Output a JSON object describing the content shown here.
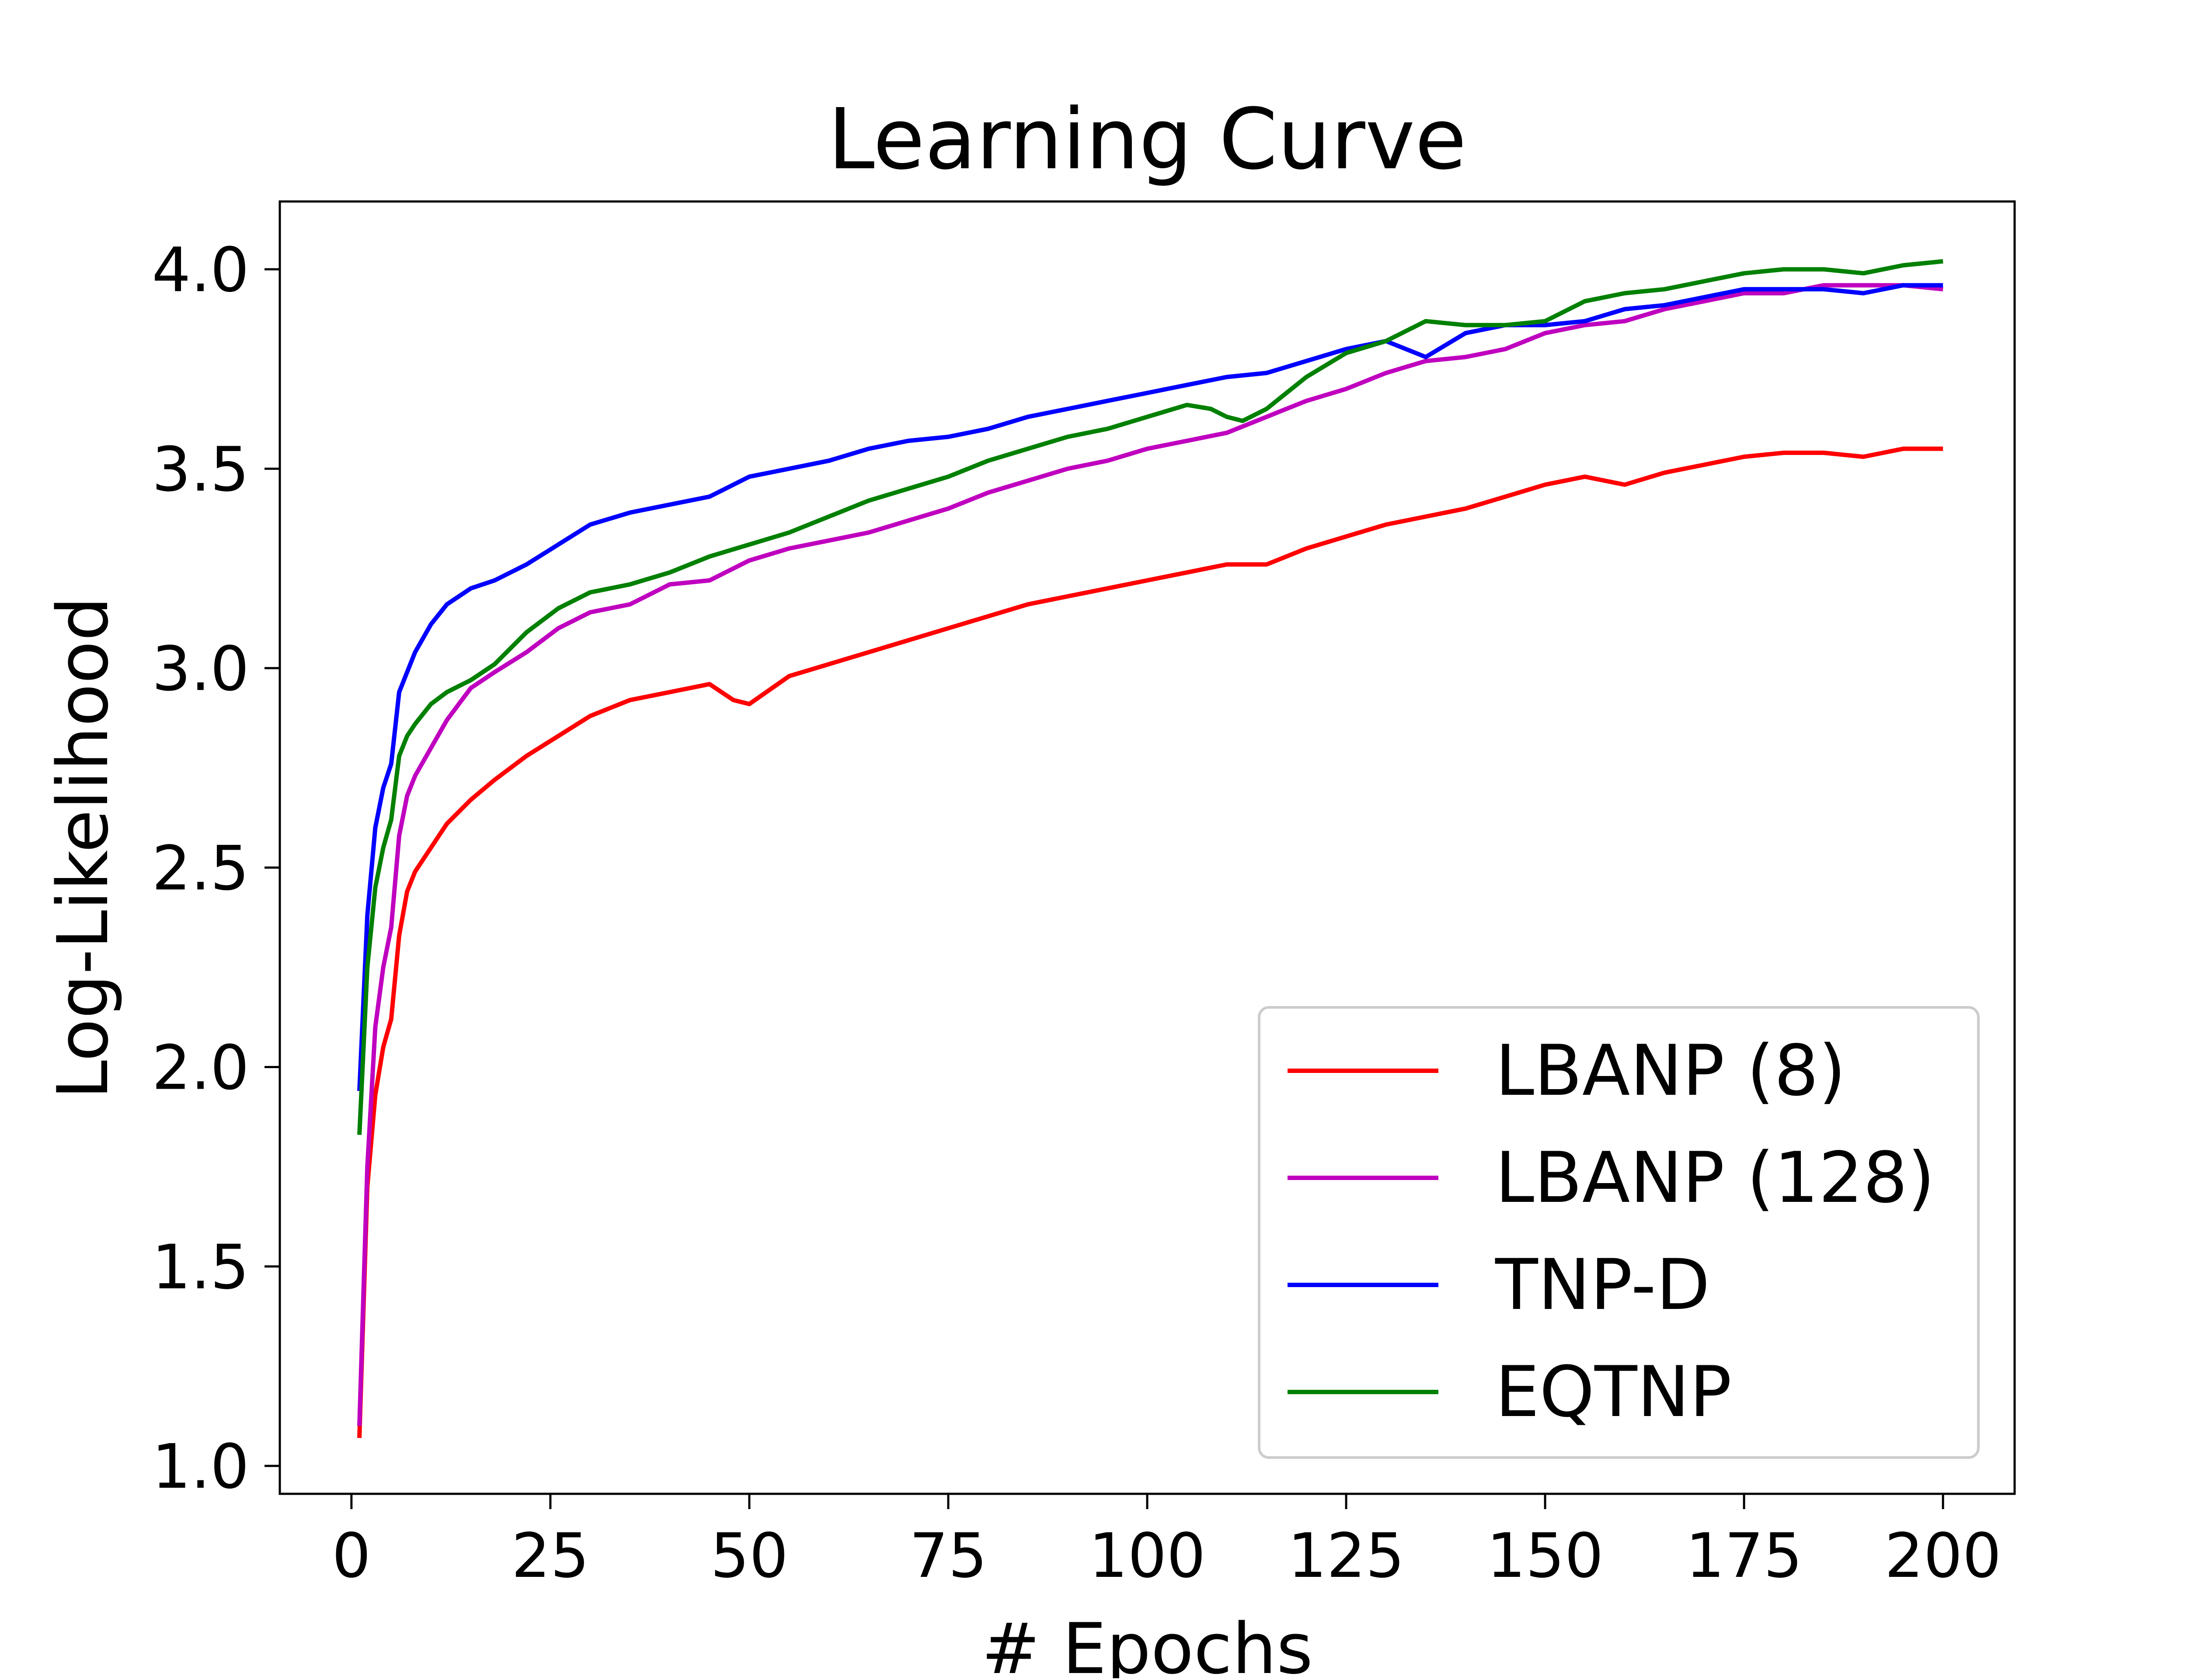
{
  "chart_data": {
    "type": "line",
    "title": "Learning Curve",
    "xlabel": "# Epochs",
    "ylabel": "Log-Likelihood",
    "xlim": [
      -9,
      209
    ],
    "ylim": [
      0.93,
      4.17
    ],
    "xticks": [
      0,
      25,
      50,
      75,
      100,
      125,
      150,
      175,
      200
    ],
    "xtick_labels": [
      "0",
      "25",
      "50",
      "75",
      "100",
      "125",
      "150",
      "175",
      "200"
    ],
    "yticks": [
      1.0,
      1.5,
      2.0,
      2.5,
      3.0,
      3.5,
      4.0
    ],
    "ytick_labels": [
      "1.0",
      "1.5",
      "2.0",
      "2.5",
      "3.0",
      "3.5",
      "4.0"
    ],
    "grid": false,
    "legend_position": "lower-right",
    "series": [
      {
        "name": "LBANP (8)",
        "color": "#ff0000",
        "x": [
          1,
          2,
          3,
          4,
          5,
          6,
          7,
          8,
          10,
          12,
          15,
          18,
          22,
          26,
          30,
          35,
          40,
          45,
          48,
          50,
          55,
          60,
          65,
          70,
          75,
          80,
          85,
          90,
          95,
          100,
          105,
          110,
          115,
          120,
          125,
          130,
          135,
          140,
          145,
          150,
          155,
          160,
          165,
          170,
          175,
          180,
          185,
          190,
          195,
          200
        ],
        "values": [
          1.07,
          1.7,
          1.93,
          2.05,
          2.12,
          2.33,
          2.44,
          2.49,
          2.55,
          2.61,
          2.67,
          2.72,
          2.78,
          2.83,
          2.88,
          2.92,
          2.94,
          2.96,
          2.92,
          2.91,
          2.98,
          3.01,
          3.04,
          3.07,
          3.1,
          3.13,
          3.16,
          3.18,
          3.2,
          3.22,
          3.24,
          3.26,
          3.26,
          3.3,
          3.33,
          3.36,
          3.38,
          3.4,
          3.43,
          3.46,
          3.48,
          3.46,
          3.49,
          3.51,
          3.53,
          3.54,
          3.54,
          3.53,
          3.55,
          3.55
        ]
      },
      {
        "name": "LBANP (128)",
        "color": "#bf00bf",
        "x": [
          1,
          2,
          3,
          4,
          5,
          6,
          7,
          8,
          10,
          12,
          15,
          18,
          22,
          26,
          30,
          35,
          40,
          45,
          50,
          55,
          60,
          65,
          70,
          75,
          80,
          85,
          90,
          95,
          100,
          105,
          110,
          115,
          120,
          125,
          130,
          135,
          140,
          145,
          150,
          155,
          160,
          165,
          170,
          175,
          180,
          185,
          190,
          195,
          200
        ],
        "values": [
          1.1,
          1.75,
          2.1,
          2.25,
          2.35,
          2.58,
          2.68,
          2.73,
          2.8,
          2.87,
          2.95,
          2.99,
          3.04,
          3.1,
          3.14,
          3.16,
          3.21,
          3.22,
          3.27,
          3.3,
          3.32,
          3.34,
          3.37,
          3.4,
          3.44,
          3.47,
          3.5,
          3.52,
          3.55,
          3.57,
          3.59,
          3.63,
          3.67,
          3.7,
          3.74,
          3.77,
          3.78,
          3.8,
          3.84,
          3.86,
          3.87,
          3.9,
          3.92,
          3.94,
          3.94,
          3.96,
          3.96,
          3.96,
          3.95
        ]
      },
      {
        "name": "TNP-D",
        "color": "#0000ff",
        "x": [
          1,
          2,
          3,
          4,
          5,
          6,
          7,
          8,
          10,
          12,
          15,
          18,
          22,
          26,
          30,
          35,
          40,
          45,
          50,
          55,
          60,
          65,
          70,
          75,
          80,
          85,
          90,
          95,
          100,
          105,
          110,
          115,
          120,
          125,
          130,
          135,
          140,
          145,
          150,
          155,
          160,
          165,
          170,
          175,
          180,
          185,
          190,
          195,
          200
        ],
        "values": [
          1.94,
          2.38,
          2.6,
          2.7,
          2.76,
          2.94,
          2.99,
          3.04,
          3.11,
          3.16,
          3.2,
          3.22,
          3.26,
          3.31,
          3.36,
          3.39,
          3.41,
          3.43,
          3.48,
          3.5,
          3.52,
          3.55,
          3.57,
          3.58,
          3.6,
          3.63,
          3.65,
          3.67,
          3.69,
          3.71,
          3.73,
          3.74,
          3.77,
          3.8,
          3.82,
          3.78,
          3.84,
          3.86,
          3.86,
          3.87,
          3.9,
          3.91,
          3.93,
          3.95,
          3.95,
          3.95,
          3.94,
          3.96,
          3.96
        ]
      },
      {
        "name": "EQTNP",
        "color": "#008000",
        "x": [
          1,
          2,
          3,
          4,
          5,
          6,
          7,
          8,
          10,
          12,
          15,
          18,
          22,
          26,
          30,
          35,
          40,
          45,
          50,
          55,
          60,
          65,
          70,
          75,
          80,
          85,
          90,
          95,
          100,
          105,
          108,
          110,
          112,
          115,
          120,
          125,
          130,
          135,
          140,
          145,
          150,
          155,
          160,
          165,
          170,
          175,
          180,
          185,
          190,
          195,
          200
        ],
        "values": [
          1.83,
          2.25,
          2.45,
          2.55,
          2.62,
          2.78,
          2.83,
          2.86,
          2.91,
          2.94,
          2.97,
          3.01,
          3.09,
          3.15,
          3.19,
          3.21,
          3.24,
          3.28,
          3.31,
          3.34,
          3.38,
          3.42,
          3.45,
          3.48,
          3.52,
          3.55,
          3.58,
          3.6,
          3.63,
          3.66,
          3.65,
          3.63,
          3.62,
          3.65,
          3.73,
          3.79,
          3.82,
          3.87,
          3.86,
          3.86,
          3.87,
          3.92,
          3.94,
          3.95,
          3.97,
          3.99,
          4.0,
          4.0,
          3.99,
          4.01,
          4.02
        ]
      }
    ]
  }
}
